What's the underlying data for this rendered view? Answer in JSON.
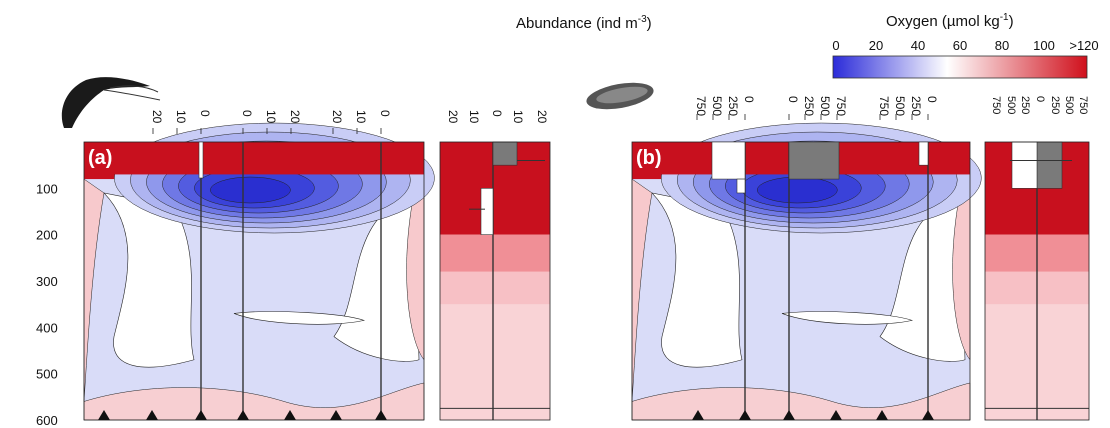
{
  "chart_data": {
    "type": "heatmap",
    "title": "",
    "top_label": {
      "text": "Abundance (ind m",
      "sup": "-3",
      "tail": ")"
    },
    "colorbar": {
      "label": {
        "text": "Oxygen (µmol kg",
        "sup": "-1",
        "tail": ")"
      },
      "ticks": [
        "0",
        "20",
        "40",
        "60",
        "80",
        "100",
        ">120"
      ],
      "range": [
        0,
        120
      ],
      "stops": [
        "#2b2bd9",
        "#ffffff",
        "#d0101c"
      ]
    },
    "y_axis": {
      "ticks": [
        "100",
        "200",
        "300",
        "400",
        "500",
        "600"
      ],
      "range": [
        0,
        600
      ],
      "reversed": true
    },
    "panels": [
      {
        "label": "(a)",
        "profile_ticks": [
          {
            "scale": [
              "20",
              "10",
              "0"
            ]
          },
          {
            "scale": [
              "0",
              "10",
              "20"
            ]
          },
          {
            "scale": [
              "20",
              "10",
              "0"
            ]
          }
        ],
        "summary_ticks": [
          "20",
          "10",
          "0",
          "10",
          "20"
        ],
        "summary_bars": [
          {
            "depth": [
              0,
              50
            ],
            "day": 0,
            "night": 10
          },
          {
            "depth": [
              100,
              200
            ],
            "day": 5,
            "night": 0
          }
        ]
      },
      {
        "label": "(b)",
        "profile_ticks": [
          {
            "scale": [
              "750",
              "500",
              "250",
              "0"
            ]
          },
          {
            "scale": [
              "0",
              "250",
              "500",
              "750"
            ]
          },
          {
            "scale": [
              "750",
              "500",
              "250",
              "0"
            ]
          }
        ],
        "summary_ticks": [
          "750",
          "500",
          "250",
          "0",
          "250",
          "500",
          "750"
        ],
        "summary_bars": [
          {
            "depth": [
              0,
              100
            ],
            "day": 250,
            "night": 250
          }
        ]
      }
    ],
    "station_markers": 8
  }
}
